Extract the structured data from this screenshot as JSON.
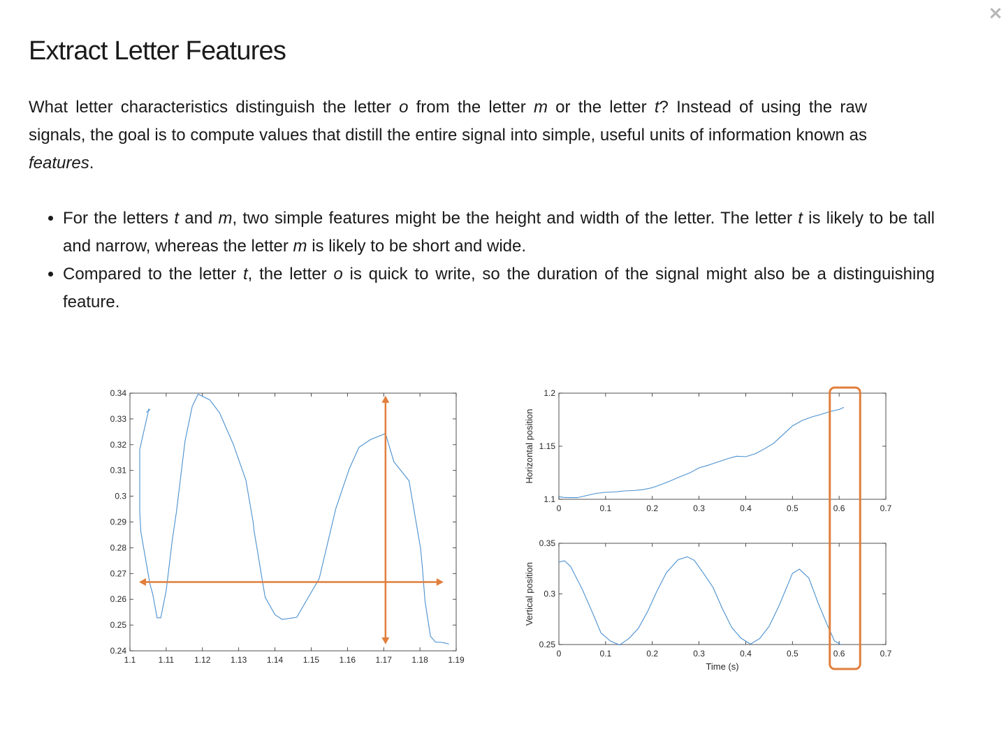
{
  "page": {
    "title": "Extract Letter Features",
    "close_glyph": "×"
  },
  "intro": [
    {
      "t": "What letter characteristics distinguish the letter "
    },
    {
      "t": "o",
      "i": true
    },
    {
      "t": " from the letter "
    },
    {
      "t": "m",
      "i": true
    },
    {
      "t": " or the letter "
    },
    {
      "t": "t",
      "i": true
    },
    {
      "t": "? Instead of using the raw signals, the goal is to compute values that distill the entire signal into simple, useful units of information known as "
    },
    {
      "t": "features",
      "i": true
    },
    {
      "t": "."
    }
  ],
  "bullets": [
    [
      {
        "t": "For the letters "
      },
      {
        "t": "t",
        "i": true
      },
      {
        "t": " and "
      },
      {
        "t": "m",
        "i": true
      },
      {
        "t": ", two simple features might be the height and width of the letter. The letter "
      },
      {
        "t": "t",
        "i": true
      },
      {
        "t": " is likely to be tall and narrow, whereas the letter "
      },
      {
        "t": "m",
        "i": true
      },
      {
        "t": " is likely to be short and wide."
      }
    ],
    [
      {
        "t": "Compared to the letter "
      },
      {
        "t": "t",
        "i": true
      },
      {
        "t": ", the letter "
      },
      {
        "t": "o",
        "i": true
      },
      {
        "t": " is quick to write, so the duration of the signal might also be a distinguishing feature."
      }
    ]
  ],
  "colors": {
    "line": "#4a90cf",
    "annotation": "#e07e3c",
    "axis": "#262626",
    "tick_text": "#262626"
  },
  "chart_data": [
    {
      "type": "line",
      "xlim": [
        1.1,
        1.19
      ],
      "ylim": [
        0.24,
        0.34
      ],
      "xticks": [
        "1.1",
        "1.11",
        "1.12",
        "1.13",
        "1.14",
        "1.15",
        "1.16",
        "1.17",
        "1.18",
        "1.19"
      ],
      "yticks": [
        "0.24",
        "0.25",
        "0.26",
        "0.27",
        "0.28",
        "0.29",
        "0.3",
        "0.31",
        "0.32",
        "0.33",
        "0.34"
      ],
      "x": [
        1.1045,
        1.1055,
        1.1052,
        1.1027,
        1.1027,
        1.103,
        1.1055,
        1.1063,
        1.1075,
        1.1085,
        1.11,
        1.1117,
        1.1128,
        1.1152,
        1.1172,
        1.1188,
        1.122,
        1.1247,
        1.1285,
        1.132,
        1.134,
        1.1342,
        1.1373,
        1.14,
        1.142,
        1.146,
        1.1522,
        1.1568,
        1.1605,
        1.1632,
        1.1664,
        1.1705,
        1.1728,
        1.177,
        1.1802,
        1.1807,
        1.1814,
        1.1829,
        1.1843,
        1.1854,
        1.187,
        1.188
      ],
      "y": [
        0.3326,
        0.3335,
        0.3338,
        0.3181,
        0.2938,
        0.2862,
        0.2661,
        0.2619,
        0.2528,
        0.2528,
        0.2634,
        0.2832,
        0.2936,
        0.3215,
        0.3349,
        0.3396,
        0.3374,
        0.3324,
        0.3202,
        0.3062,
        0.2898,
        0.2869,
        0.2608,
        0.254,
        0.2522,
        0.253,
        0.268,
        0.2952,
        0.3106,
        0.319,
        0.322,
        0.3243,
        0.3134,
        0.306,
        0.2796,
        0.272,
        0.2592,
        0.2456,
        0.2434,
        0.2434,
        0.243,
        0.2426
      ],
      "annotations": [
        {
          "type": "double-arrow",
          "orientation": "horizontal",
          "x": [
            1.1025,
            1.1865
          ],
          "y": 0.2667
        },
        {
          "type": "double-arrow",
          "orientation": "vertical",
          "x": 1.1705,
          "y": [
            0.2425,
            0.339
          ]
        }
      ]
    },
    {
      "type": "line",
      "xlim": [
        0,
        0.7
      ],
      "ylim": [
        1.1,
        1.2
      ],
      "xticks": [
        "0",
        "0.1",
        "0.2",
        "0.3",
        "0.4",
        "0.5",
        "0.6",
        "0.7"
      ],
      "yticks": [
        "1.1",
        "1.15",
        "1.2"
      ],
      "ylabel": "Horizontal position",
      "x": [
        0,
        0.01,
        0.02,
        0.04,
        0.06,
        0.08,
        0.1,
        0.12,
        0.14,
        0.16,
        0.18,
        0.2,
        0.22,
        0.24,
        0.26,
        0.28,
        0.3,
        0.32,
        0.34,
        0.36,
        0.38,
        0.4,
        0.42,
        0.44,
        0.46,
        0.48,
        0.5,
        0.52,
        0.54,
        0.56,
        0.58,
        0.6,
        0.61
      ],
      "y": [
        1.1025,
        1.1018,
        1.1016,
        1.1016,
        1.1036,
        1.1056,
        1.1066,
        1.1069,
        1.1079,
        1.1082,
        1.1091,
        1.1109,
        1.1141,
        1.1176,
        1.1214,
        1.1248,
        1.1296,
        1.1321,
        1.1351,
        1.1381,
        1.1406,
        1.1401,
        1.1428,
        1.1475,
        1.1528,
        1.161,
        1.1691,
        1.1741,
        1.1774,
        1.1799,
        1.1826,
        1.1846,
        1.1866
      ]
    },
    {
      "type": "line",
      "xlim": [
        0,
        0.7
      ],
      "ylim": [
        0.25,
        0.35
      ],
      "xticks": [
        "0",
        "0.1",
        "0.2",
        "0.3",
        "0.4",
        "0.5",
        "0.6",
        "0.7"
      ],
      "yticks": [
        "0.25",
        "0.3",
        "0.35"
      ],
      "xlabel": "Time (s)",
      "ylabel": "Vertical position",
      "x": [
        0,
        0.012,
        0.025,
        0.05,
        0.07,
        0.09,
        0.11,
        0.13,
        0.15,
        0.17,
        0.19,
        0.21,
        0.23,
        0.255,
        0.275,
        0.29,
        0.31,
        0.33,
        0.35,
        0.37,
        0.39,
        0.41,
        0.43,
        0.45,
        0.47,
        0.49,
        0.5,
        0.515,
        0.535,
        0.555,
        0.575,
        0.59,
        0.605
      ],
      "y": [
        0.3315,
        0.3327,
        0.3272,
        0.3046,
        0.2836,
        0.2615,
        0.2535,
        0.2496,
        0.256,
        0.2659,
        0.2826,
        0.3028,
        0.3209,
        0.3337,
        0.3367,
        0.3331,
        0.3201,
        0.3065,
        0.2855,
        0.2668,
        0.2563,
        0.2505,
        0.256,
        0.2679,
        0.287,
        0.309,
        0.3203,
        0.3244,
        0.3157,
        0.291,
        0.269,
        0.2535,
        0.2495
      ]
    }
  ],
  "highlight": {
    "type": "rounded-rect",
    "x_range": [
      0.58,
      0.645
    ],
    "spans": "both time plots"
  }
}
